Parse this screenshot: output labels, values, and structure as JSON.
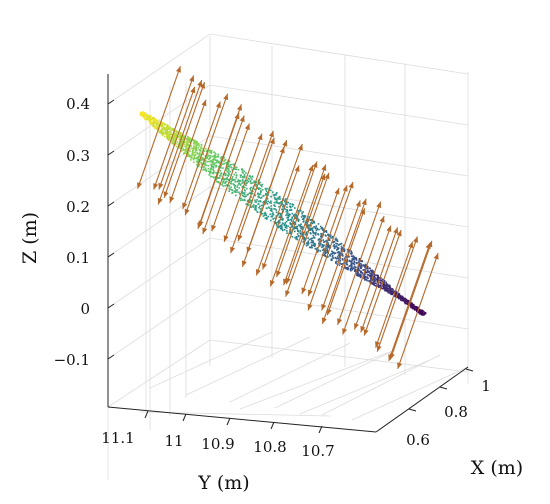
{
  "chart_data": {
    "type": "scatter",
    "title": "",
    "xlabel": "X (m)",
    "ylabel": "Y (m)",
    "zlabel": "Z (m)",
    "x_ticks": [
      "0.6",
      "0.8",
      "1"
    ],
    "y_ticks": [
      "11.1",
      "11",
      "10.9",
      "10.8",
      "10.7"
    ],
    "z_ticks": [
      "0.4",
      "0.3",
      "0.2",
      "0.1",
      "0",
      "−0.1"
    ],
    "xlim": [
      0.5,
      1.1
    ],
    "ylim": [
      10.62,
      11.15
    ],
    "zlim": [
      -0.15,
      0.45
    ],
    "grid": true,
    "colormap": "viridis (colored by height)",
    "point_cloud": {
      "description_in_data_units": "elongated thin strip of points",
      "start": {
        "x": 0.62,
        "y": 11.08,
        "z": 0.4
      },
      "end": {
        "x": 1.0,
        "y": 10.72,
        "z": 0.0
      },
      "approx_points": 2400
    },
    "normal_vectors": {
      "count": 40,
      "color": "#b5692a",
      "style": "double-headed arrows along surface normal"
    }
  }
}
